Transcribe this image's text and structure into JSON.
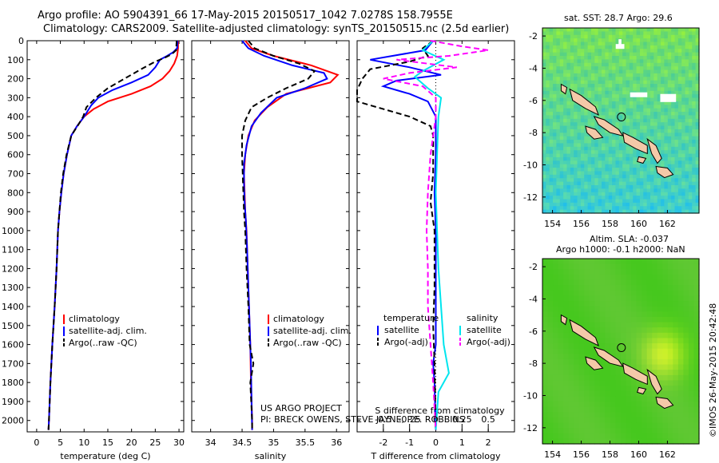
{
  "header": {
    "line1": "Argo profile: AO 5904391_66 17-May-2015 20150517_1042 7.0278S 158.7955E",
    "line2": "Climatology: CARS2009. Satellite-adjusted climatology: synTS_20150515.nc (2.5d earlier)"
  },
  "colors": {
    "climatology": "#ff0000",
    "satellite": "#0000ff",
    "argo": "#000000",
    "sat_salinity": "#00e5ee",
    "argo_salinity": "#ff00ff"
  },
  "chart_data": [
    {
      "type": "line",
      "name": "temperature-profile",
      "xlabel": "temperature (deg C)",
      "ylabel": "",
      "xlim": [
        -2,
        31
      ],
      "ylim": [
        2060,
        0
      ],
      "xticks": [
        0,
        5,
        10,
        15,
        20,
        25,
        30
      ],
      "yticks": [
        0,
        100,
        200,
        300,
        400,
        500,
        600,
        700,
        800,
        900,
        1000,
        1100,
        1200,
        1300,
        1400,
        1500,
        1600,
        1700,
        1800,
        1900,
        2000
      ],
      "legend": [
        "climatology",
        "satellite-adj. clim.",
        "Argo(..raw -QC)"
      ],
      "series": [
        {
          "name": "climatology",
          "style": "solid",
          "color": "#ff0000",
          "points": [
            [
              29.8,
              0
            ],
            [
              29.8,
              40
            ],
            [
              29.6,
              80
            ],
            [
              29.0,
              120
            ],
            [
              28.0,
              160
            ],
            [
              26.5,
              200
            ],
            [
              24.0,
              240
            ],
            [
              20.0,
              280
            ],
            [
              15.0,
              320
            ],
            [
              12.0,
              360
            ],
            [
              10.0,
              400
            ],
            [
              8.5,
              450
            ],
            [
              7.3,
              500
            ],
            [
              6.4,
              600
            ],
            [
              5.7,
              700
            ],
            [
              5.2,
              800
            ],
            [
              4.8,
              900
            ],
            [
              4.5,
              1000
            ],
            [
              4.2,
              1200
            ],
            [
              3.8,
              1400
            ],
            [
              3.3,
              1600
            ],
            [
              2.9,
              1800
            ],
            [
              2.6,
              2000
            ],
            [
              2.5,
              2050
            ]
          ]
        },
        {
          "name": "satellite-adj. clim.",
          "style": "solid",
          "color": "#0000ff",
          "points": [
            [
              29.7,
              0
            ],
            [
              29.6,
              40
            ],
            [
              28.8,
              60
            ],
            [
              27.5,
              80
            ],
            [
              26.0,
              100
            ],
            [
              25.0,
              140
            ],
            [
              23.5,
              180
            ],
            [
              20.0,
              220
            ],
            [
              16.0,
              260
            ],
            [
              13.0,
              300
            ],
            [
              11.5,
              340
            ],
            [
              10.0,
              400
            ],
            [
              8.5,
              450
            ],
            [
              7.3,
              500
            ],
            [
              6.4,
              600
            ],
            [
              5.7,
              700
            ],
            [
              5.2,
              800
            ],
            [
              4.8,
              900
            ],
            [
              4.5,
              1000
            ],
            [
              4.2,
              1200
            ],
            [
              3.8,
              1400
            ],
            [
              3.3,
              1600
            ],
            [
              2.9,
              1800
            ],
            [
              2.6,
              2000
            ],
            [
              2.5,
              2050
            ]
          ]
        },
        {
          "name": "Argo(..raw -QC)",
          "style": "dashed",
          "color": "#000000",
          "points": [
            [
              29.5,
              0
            ],
            [
              29.4,
              50
            ],
            [
              28.5,
              70
            ],
            [
              27.0,
              90
            ],
            [
              25.0,
              110
            ],
            [
              22.0,
              150
            ],
            [
              18.5,
              200
            ],
            [
              15.0,
              250
            ],
            [
              12.5,
              300
            ],
            [
              10.5,
              350
            ],
            [
              9.8,
              400
            ],
            [
              8.6,
              450
            ],
            [
              7.3,
              500
            ],
            [
              6.3,
              600
            ],
            [
              5.6,
              700
            ],
            [
              5.1,
              800
            ],
            [
              4.8,
              900
            ],
            [
              4.5,
              1000
            ],
            [
              4.2,
              1200
            ],
            [
              3.8,
              1400
            ],
            [
              3.3,
              1600
            ],
            [
              2.9,
              1800
            ],
            [
              2.6,
              2000
            ],
            [
              2.5,
              2050
            ]
          ]
        }
      ]
    },
    {
      "type": "line",
      "name": "salinity-profile",
      "xlabel": "salinity",
      "ylabel": "",
      "xlim": [
        33.7,
        36.2
      ],
      "ylim": [
        2060,
        0
      ],
      "xticks": [
        34,
        34.5,
        35,
        35.5,
        36
      ],
      "xtick_labels": [
        "34",
        "34.5",
        "35",
        "35.5",
        "36"
      ],
      "legend": [
        "climatology",
        "satellite-adj. clim.",
        "Argo(..raw -QC)"
      ],
      "series": [
        {
          "name": "climatology",
          "style": "solid",
          "color": "#ff0000",
          "points": [
            [
              34.55,
              0
            ],
            [
              34.65,
              40
            ],
            [
              35.0,
              80
            ],
            [
              35.6,
              130
            ],
            [
              36.02,
              180
            ],
            [
              35.9,
              220
            ],
            [
              35.2,
              280
            ],
            [
              34.9,
              350
            ],
            [
              34.7,
              420
            ],
            [
              34.6,
              500
            ],
            [
              34.55,
              600
            ],
            [
              34.53,
              700
            ],
            [
              34.54,
              800
            ],
            [
              34.55,
              900
            ],
            [
              34.57,
              1000
            ],
            [
              34.59,
              1200
            ],
            [
              34.61,
              1400
            ],
            [
              34.63,
              1600
            ],
            [
              34.64,
              1800
            ],
            [
              34.66,
              2000
            ],
            [
              34.66,
              2050
            ]
          ]
        },
        {
          "name": "satellite-adj. clim.",
          "style": "solid",
          "color": "#0000ff",
          "points": [
            [
              34.5,
              0
            ],
            [
              34.6,
              40
            ],
            [
              34.85,
              80
            ],
            [
              35.3,
              130
            ],
            [
              35.8,
              170
            ],
            [
              35.85,
              200
            ],
            [
              35.5,
              250
            ],
            [
              35.05,
              300
            ],
            [
              34.8,
              380
            ],
            [
              34.65,
              450
            ],
            [
              34.57,
              550
            ],
            [
              34.53,
              650
            ],
            [
              34.53,
              750
            ],
            [
              34.54,
              850
            ],
            [
              34.56,
              950
            ],
            [
              34.58,
              1100
            ],
            [
              34.6,
              1300
            ],
            [
              34.62,
              1500
            ],
            [
              34.64,
              1700
            ],
            [
              34.65,
              1900
            ],
            [
              34.66,
              2050
            ]
          ]
        },
        {
          "name": "Argo(..raw -QC)",
          "style": "dashed",
          "color": "#000000",
          "points": [
            [
              34.6,
              0
            ],
            [
              34.7,
              40
            ],
            [
              35.0,
              80
            ],
            [
              35.4,
              120
            ],
            [
              35.65,
              160
            ],
            [
              35.55,
              200
            ],
            [
              35.2,
              250
            ],
            [
              34.9,
              300
            ],
            [
              34.65,
              350
            ],
            [
              34.55,
              420
            ],
            [
              34.5,
              500
            ],
            [
              34.5,
              600
            ],
            [
              34.51,
              700
            ],
            [
              34.52,
              800
            ],
            [
              34.53,
              900
            ],
            [
              34.55,
              1000
            ],
            [
              34.57,
              1200
            ],
            [
              34.6,
              1400
            ],
            [
              34.62,
              1600
            ],
            [
              34.68,
              1700
            ],
            [
              34.63,
              1800
            ],
            [
              34.66,
              2000
            ],
            [
              34.66,
              2050
            ]
          ]
        }
      ]
    },
    {
      "type": "line",
      "name": "difference-profile",
      "xlabel": "T difference from climatology",
      "top_label": "S difference from climatology",
      "xlim": [
        -3,
        3
      ],
      "ylim": [
        2060,
        0
      ],
      "xticks": [
        -2,
        -1,
        0,
        1,
        2
      ],
      "s_ticks": [
        -0.5,
        -0.25,
        0,
        0.25,
        0.5
      ],
      "s_tick_labels": [
        "-0.5",
        "-0.25",
        "0",
        "0.25",
        "0.5"
      ],
      "legend_temperature_title": "temperature",
      "legend_salinity_title": "salinity",
      "legend_temperature": [
        "satellite",
        "Argo(-adj)"
      ],
      "legend_salinity": [
        "satellite",
        "Argo(-adj)"
      ],
      "series": [
        {
          "name": "temperature satellite",
          "style": "solid",
          "color": "#0000ff",
          "points": [
            [
              -0.1,
              0
            ],
            [
              -0.4,
              50
            ],
            [
              -2.5,
              100
            ],
            [
              -1.0,
              140
            ],
            [
              0.2,
              180
            ],
            [
              -1.5,
              210
            ],
            [
              -2.0,
              240
            ],
            [
              -1.0,
              280
            ],
            [
              -0.3,
              320
            ],
            [
              0,
              400
            ],
            [
              0,
              600
            ],
            [
              -0.05,
              800
            ],
            [
              0,
              1000
            ],
            [
              0,
              1200
            ],
            [
              0,
              1400
            ],
            [
              0,
              1600
            ],
            [
              -0.1,
              1700
            ],
            [
              -0.05,
              1800
            ],
            [
              0,
              2050
            ]
          ]
        },
        {
          "name": "temperature Argo(-adj)",
          "style": "dashed",
          "color": "#000000",
          "points": [
            [
              -0.1,
              0
            ],
            [
              -0.5,
              40
            ],
            [
              -0.3,
              80
            ],
            [
              -1.0,
              110
            ],
            [
              -2.5,
              150
            ],
            [
              -2.8,
              200
            ],
            [
              -3.0,
              260
            ],
            [
              -3.0,
              320
            ],
            [
              -2.0,
              360
            ],
            [
              -1.0,
              400
            ],
            [
              -0.2,
              450
            ],
            [
              -0.1,
              500
            ],
            [
              -0.1,
              700
            ],
            [
              -0.2,
              850
            ],
            [
              -0.05,
              1000
            ],
            [
              -0.05,
              1300
            ],
            [
              -0.1,
              1500
            ],
            [
              -0.05,
              1700
            ],
            [
              0,
              2050
            ]
          ]
        },
        {
          "name": "salinity satellite",
          "style": "solid",
          "color": "#00e5ee",
          "points": [
            [
              -0.1,
              0
            ],
            [
              -0.5,
              50
            ],
            [
              0.3,
              100
            ],
            [
              -0.5,
              160
            ],
            [
              -0.8,
              190
            ],
            [
              -0.3,
              250
            ],
            [
              0.2,
              300
            ],
            [
              0.1,
              400
            ],
            [
              0.05,
              600
            ],
            [
              0,
              800
            ],
            [
              0.05,
              1000
            ],
            [
              0.1,
              1200
            ],
            [
              0.2,
              1400
            ],
            [
              0.3,
              1600
            ],
            [
              0.5,
              1750
            ],
            [
              0.1,
              1850
            ],
            [
              0,
              2050
            ]
          ]
        },
        {
          "name": "salinity Argo(-adj)",
          "style": "dashed",
          "color": "#ff00ff",
          "points": [
            [
              -0.2,
              0
            ],
            [
              1.0,
              30
            ],
            [
              2.0,
              50
            ],
            [
              0.5,
              80
            ],
            [
              -1.5,
              100
            ],
            [
              0.8,
              140
            ],
            [
              -1.0,
              170
            ],
            [
              -2.0,
              200
            ],
            [
              -0.5,
              240
            ],
            [
              0,
              300
            ],
            [
              0,
              400
            ],
            [
              -0.2,
              600
            ],
            [
              -0.3,
              800
            ],
            [
              -0.35,
              1000
            ],
            [
              -0.3,
              1200
            ],
            [
              -0.3,
              1400
            ],
            [
              -0.2,
              1600
            ],
            [
              -0.1,
              1800
            ],
            [
              0,
              2050
            ]
          ]
        }
      ]
    },
    {
      "type": "heatmap",
      "name": "sst-map",
      "title": "sat. SST: 28.7  Argo: 29.6",
      "xlim": [
        153.3,
        164.2
      ],
      "ylim": [
        -13.0,
        -1.5
      ],
      "xticks": [
        154,
        156,
        158,
        160,
        162
      ],
      "yticks": [
        -2,
        -4,
        -6,
        -8,
        -10,
        -12
      ],
      "profile_location": {
        "lon": 158.7955,
        "lat": -7.0278
      }
    },
    {
      "type": "heatmap",
      "name": "sla-map",
      "title": "Altim. SLA: -0.037",
      "subtitle": "Argo h1000: -0.1 h2000: NaN",
      "xlim": [
        153.3,
        164.2
      ],
      "ylim": [
        -13.0,
        -1.5
      ],
      "xticks": [
        154,
        156,
        158,
        160,
        162
      ],
      "yticks": [
        -2,
        -4,
        -6,
        -8,
        -10,
        -12
      ],
      "profile_location": {
        "lon": 158.7955,
        "lat": -7.0278
      }
    }
  ],
  "credits": {
    "line1": "US ARGO PROJECT",
    "line2": "PI: BRECK OWENS, STEVE JAYNE, P.E. ROBBINS"
  },
  "stamp": "©IMOS 26-May-2015 20:42:48"
}
